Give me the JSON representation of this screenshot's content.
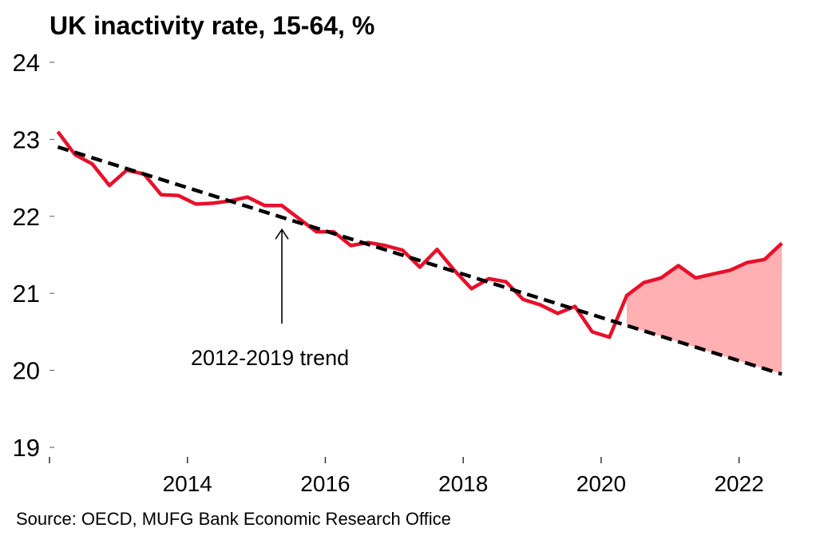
{
  "chart_data": {
    "type": "line",
    "title": "UK inactivity rate, 15-64, %",
    "source": "Source: OECD, MUFG Bank Economic Research Office",
    "xlabel": "",
    "ylabel": "",
    "xlim": [
      2012.0,
      2023.0
    ],
    "ylim": [
      19,
      24
    ],
    "xticks": [
      2012,
      2014,
      2016,
      2018,
      2020,
      2022
    ],
    "xtick_labels": [
      "",
      "2014",
      "2016",
      "2018",
      "2020",
      "2022"
    ],
    "yticks": [
      19,
      20,
      21,
      22,
      23,
      24
    ],
    "ytick_labels": [
      "19",
      "20",
      "21",
      "22",
      "23",
      "24"
    ],
    "grid": false,
    "legend": "none",
    "series": [
      {
        "color": "#e8102a",
        "style": "solid",
        "x": [
          2012.12,
          2012.37,
          2012.62,
          2012.87,
          2013.12,
          2013.37,
          2013.62,
          2013.87,
          2014.12,
          2014.37,
          2014.62,
          2014.87,
          2015.12,
          2015.37,
          2015.62,
          2015.87,
          2016.12,
          2016.37,
          2016.62,
          2016.87,
          2017.12,
          2017.37,
          2017.62,
          2017.87,
          2018.12,
          2018.37,
          2018.62,
          2018.87,
          2019.12,
          2019.37,
          2019.62,
          2019.87,
          2020.12,
          2020.37,
          2020.62,
          2020.87,
          2021.12,
          2021.37,
          2021.62,
          2021.87,
          2022.12,
          2022.37,
          2022.62
        ],
        "y": [
          23.1,
          22.8,
          22.68,
          22.4,
          22.6,
          22.55,
          22.28,
          22.27,
          22.16,
          22.17,
          22.2,
          22.25,
          22.14,
          22.14,
          21.97,
          21.8,
          21.8,
          21.62,
          21.66,
          21.62,
          21.56,
          21.34,
          21.57,
          21.3,
          21.06,
          21.19,
          21.15,
          20.92,
          20.85,
          20.74,
          20.83,
          20.5,
          20.43,
          20.97,
          21.14,
          21.2,
          21.36,
          21.2,
          21.25,
          21.3,
          21.4,
          21.44,
          21.65
        ]
      },
      {
        "name": "2012-2019 trend",
        "color": "#000000",
        "style": "dashed",
        "x": [
          2012.12,
          2022.62
        ],
        "y": [
          22.9,
          19.95
        ]
      }
    ],
    "fill_between": {
      "color": "#ffb0b3",
      "x_from": 2020.37,
      "x_to": 2022.62,
      "upper": "series 0",
      "lower": "series 1"
    },
    "annotations": [
      {
        "text": "2012-2019 trend",
        "arrow_to": [
          2015.37,
          21.85
        ]
      }
    ]
  }
}
